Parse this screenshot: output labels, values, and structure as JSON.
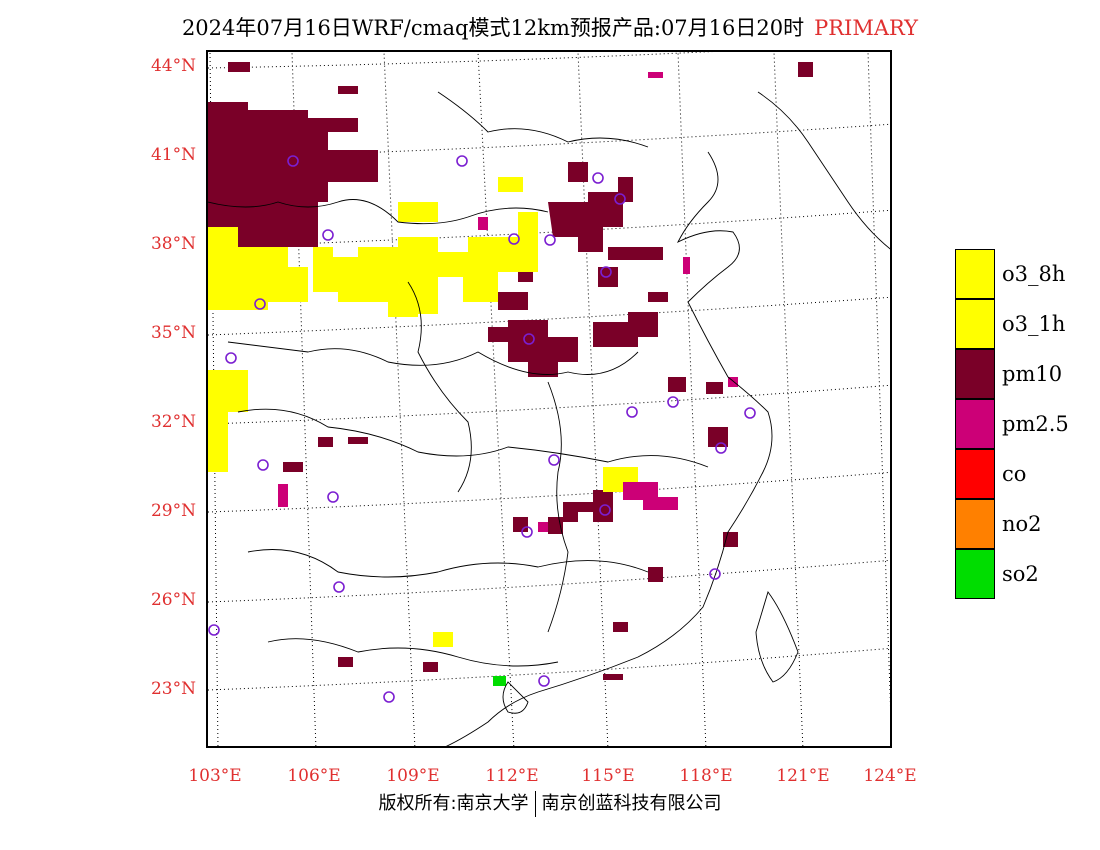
{
  "title": {
    "main": "2024年07月16日WRF/cmaq模式12km预报产品:07月16日20时",
    "tag": "PRIMARY"
  },
  "latitude_labels": [
    "44°N",
    "41°N",
    "38°N",
    "35°N",
    "32°N",
    "29°N",
    "26°N",
    "23°N"
  ],
  "longitude_labels": [
    "103°E",
    "106°E",
    "109°E",
    "112°E",
    "115°E",
    "118°E",
    "121°E",
    "124°E"
  ],
  "legend": [
    {
      "label": "o3_8h",
      "color": "#ffff00"
    },
    {
      "label": "o3_1h",
      "color": "#ffff00"
    },
    {
      "label": "pm10",
      "color": "#7a0028"
    },
    {
      "label": "pm2.5",
      "color": "#cc0077"
    },
    {
      "label": "co",
      "color": "#ff0000"
    },
    {
      "label": "no2",
      "color": "#ff8000"
    },
    {
      "label": "so2",
      "color": "#00dd00"
    }
  ],
  "colors": {
    "o3": "#ffff00",
    "pm10": "#7a0028",
    "pm25": "#cc0077",
    "co": "#ff0000",
    "no2": "#ff8000",
    "so2": "#00dd00",
    "station_marker": "#7b1fd1",
    "label_red": "#e03030"
  },
  "footer": {
    "left": "版权所有:南京大学",
    "right": "南京创蓝科技有限公司"
  }
}
